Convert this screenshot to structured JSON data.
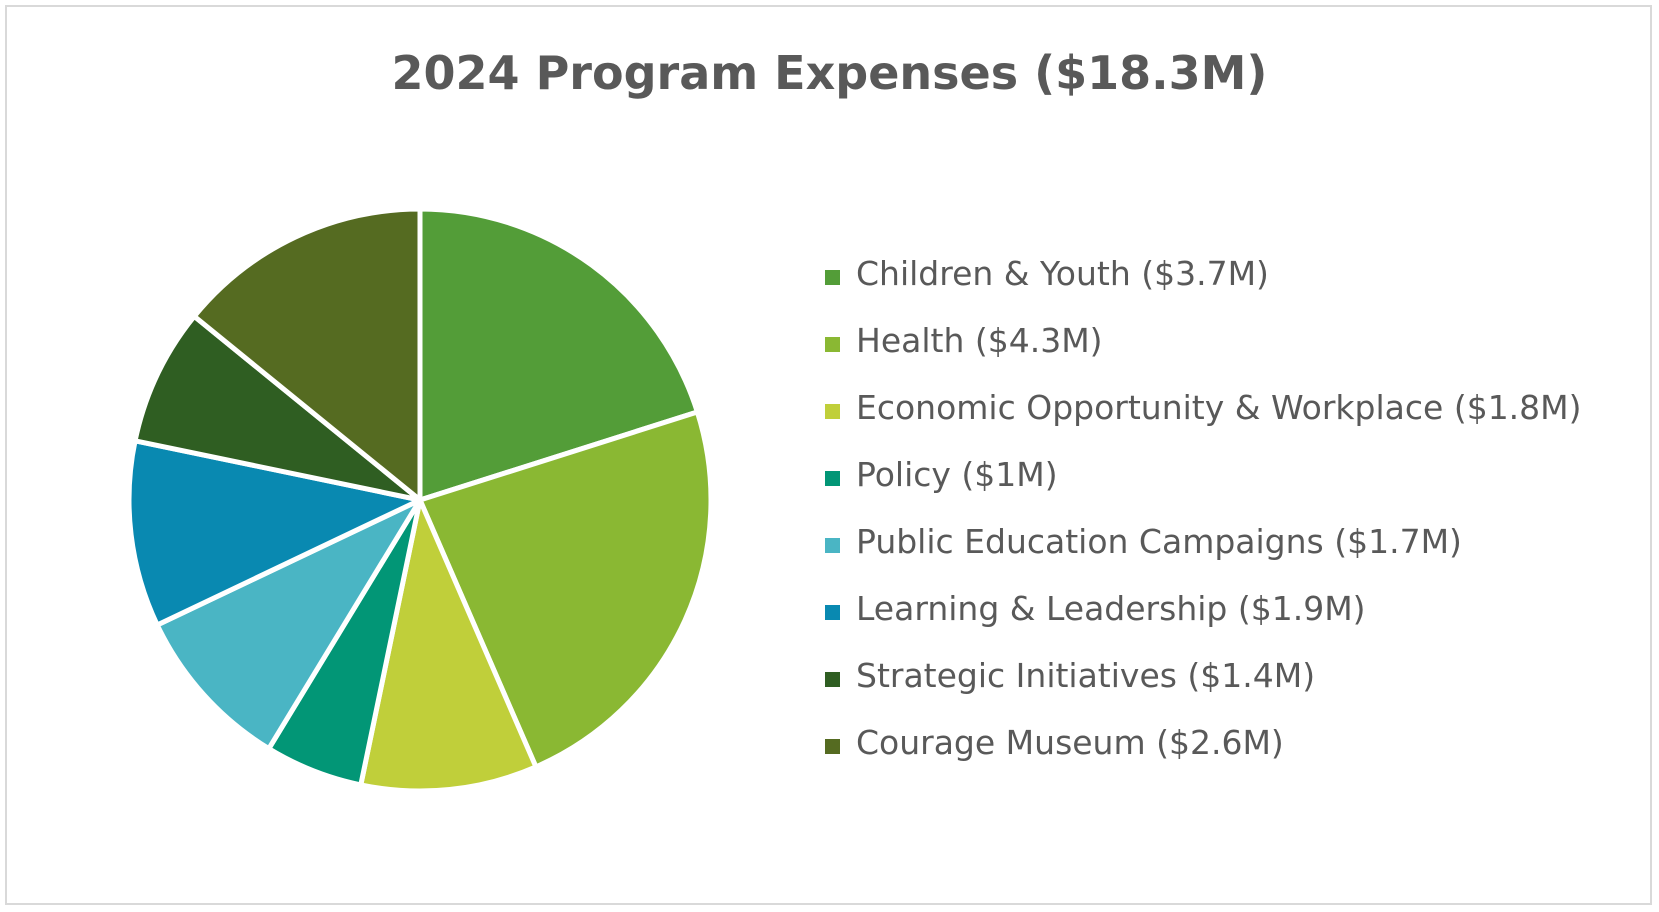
{
  "chart_data": {
    "type": "pie",
    "title": "2024 Program Expenses ($18.3M)",
    "slices": [
      {
        "label": "Children & Youth ($3.7M)",
        "value": 3.7,
        "color": "#539d38"
      },
      {
        "label": "Health ($4.3M)",
        "value": 4.3,
        "color": "#8ab833"
      },
      {
        "label": "Economic Opportunity & Workplace ($1.8M)",
        "value": 1.8,
        "color": "#c0cf3a"
      },
      {
        "label": "Policy ($1M)",
        "value": 1.0,
        "color": "#029676"
      },
      {
        "label": "Public Education Campaigns ($1.7M)",
        "value": 1.7,
        "color": "#4ab5c4"
      },
      {
        "label": "Learning & Leadership ($1.9M)",
        "value": 1.9,
        "color": "#0989b1"
      },
      {
        "label": "Strategic Initiatives ($1.4M)",
        "value": 1.4,
        "color": "#2f5e22"
      },
      {
        "label": "Courage Museum ($2.6M)",
        "value": 2.6,
        "color": "#556b21"
      }
    ],
    "legend_position": "right",
    "start_angle": "12 o'clock",
    "direction": "clockwise"
  }
}
